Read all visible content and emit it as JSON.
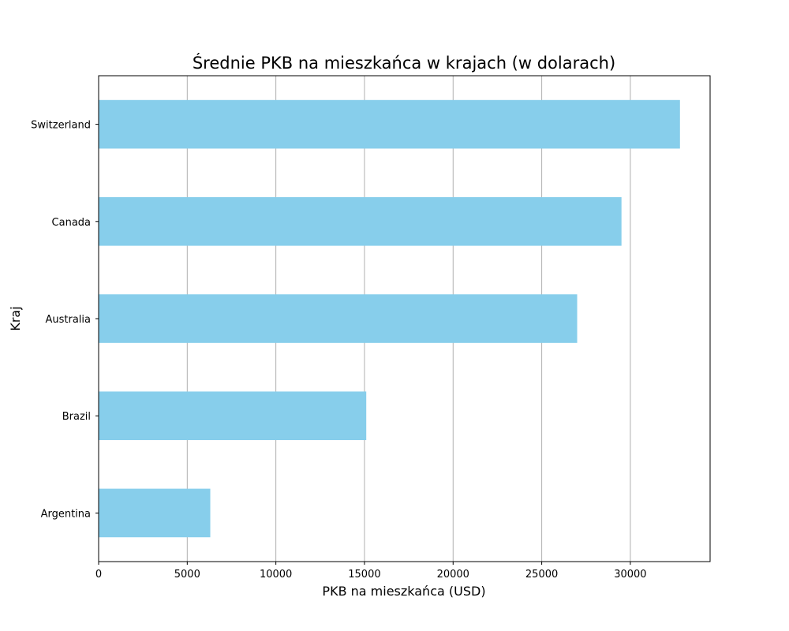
{
  "chart_data": {
    "type": "bar",
    "orientation": "horizontal",
    "title": "Średnie PKB na mieszkańca w krajach (w dolarach)",
    "xlabel": "PKB na mieszkańca (USD)",
    "ylabel": "Kraj",
    "categories": [
      "Argentina",
      "Brazil",
      "Australia",
      "Canada",
      "Switzerland"
    ],
    "values": [
      6300,
      15100,
      27000,
      29500,
      32800
    ],
    "xlim": [
      0,
      34500
    ],
    "xticks": [
      0,
      5000,
      10000,
      15000,
      20000,
      25000,
      30000
    ],
    "grid": "vertical",
    "bar_color": "#87CEEB"
  }
}
